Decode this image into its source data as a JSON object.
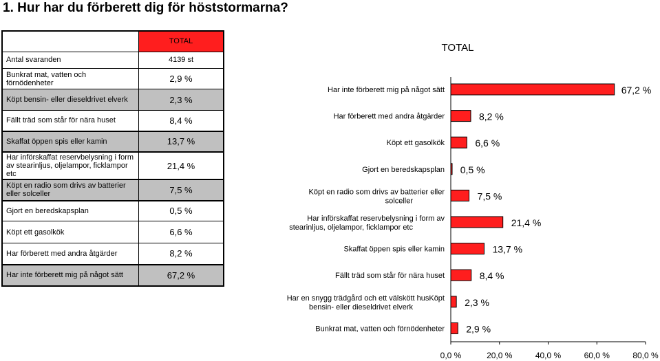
{
  "page": {
    "heading": "1. Hur har du förberett dig för höststormarna?"
  },
  "table": {
    "header": "TOTAL",
    "respondents_label": "Antal svaranden",
    "respondents_value": "4139 st",
    "rows": [
      {
        "label": "Bunkrat mat, vatten och förnödenheter",
        "value": "2,9 %",
        "shade": "white"
      },
      {
        "label": "Köpt bensin- eller dieseldrivet elverk",
        "value": "2,3 %",
        "shade": "gray"
      },
      {
        "label": "Fällt träd som står för nära huset",
        "value": "8,4 %",
        "shade": "white"
      },
      {
        "label": "Skaffat öppen spis eller kamin",
        "value": "13,7 %",
        "shade": "gray"
      },
      {
        "label": "Har införskaffat reservbelysning i form av stearinljus, oljelampor, ficklampor etc",
        "value": "21,4 %",
        "shade": "white"
      },
      {
        "label": "Köpt en radio som drivs av batterier eller solceller",
        "value": "7,5 %",
        "shade": "gray"
      },
      {
        "label": "Gjort en beredskapsplan",
        "value": "0,5 %",
        "shade": "white"
      },
      {
        "label": "Köpt ett gasolkök",
        "value": "6,6 %",
        "shade": "white"
      },
      {
        "label": "Har förberett med andra åtgärder",
        "value": "8,2 %",
        "shade": "white"
      },
      {
        "label": "Har inte förberett mig på något sätt",
        "value": "67,2 %",
        "shade": "gray"
      }
    ]
  },
  "chart_data": {
    "type": "bar",
    "orientation": "horizontal",
    "title": "TOTAL",
    "categories": [
      "Har inte förberett mig på något sätt",
      "Har förberett med andra åtgärder",
      "Köpt ett gasolkök",
      "Gjort en beredskapsplan",
      "Köpt en radio som drivs av batterier eller solceller",
      "Har införskaffat reservbelysning i form av stearinljus, oljelampor, ficklampor etc",
      "Skaffat öppen spis eller kamin",
      "Fällt träd som står för nära huset",
      "Har en snygg trädgård och ett välskött husKöpt bensin- eller dieseldrivet elverk",
      "Bunkrat mat, vatten och förnödenheter"
    ],
    "values": [
      67.2,
      8.2,
      6.6,
      0.5,
      7.5,
      21.4,
      13.7,
      8.4,
      2.3,
      2.9
    ],
    "data_labels": [
      "67,2 %",
      "8,2 %",
      "6,6 %",
      "0,5 %",
      "7,5 %",
      "21,4 %",
      "13,7 %",
      "8,4 %",
      "2,3 %",
      "2,9 %"
    ],
    "xlim": [
      0,
      80
    ],
    "xticks": [
      "0,0 %",
      "20,0 %",
      "40,0 %",
      "60,0 %",
      "80,0 %"
    ],
    "bar_color": "#ff1e1e",
    "grid": false
  }
}
